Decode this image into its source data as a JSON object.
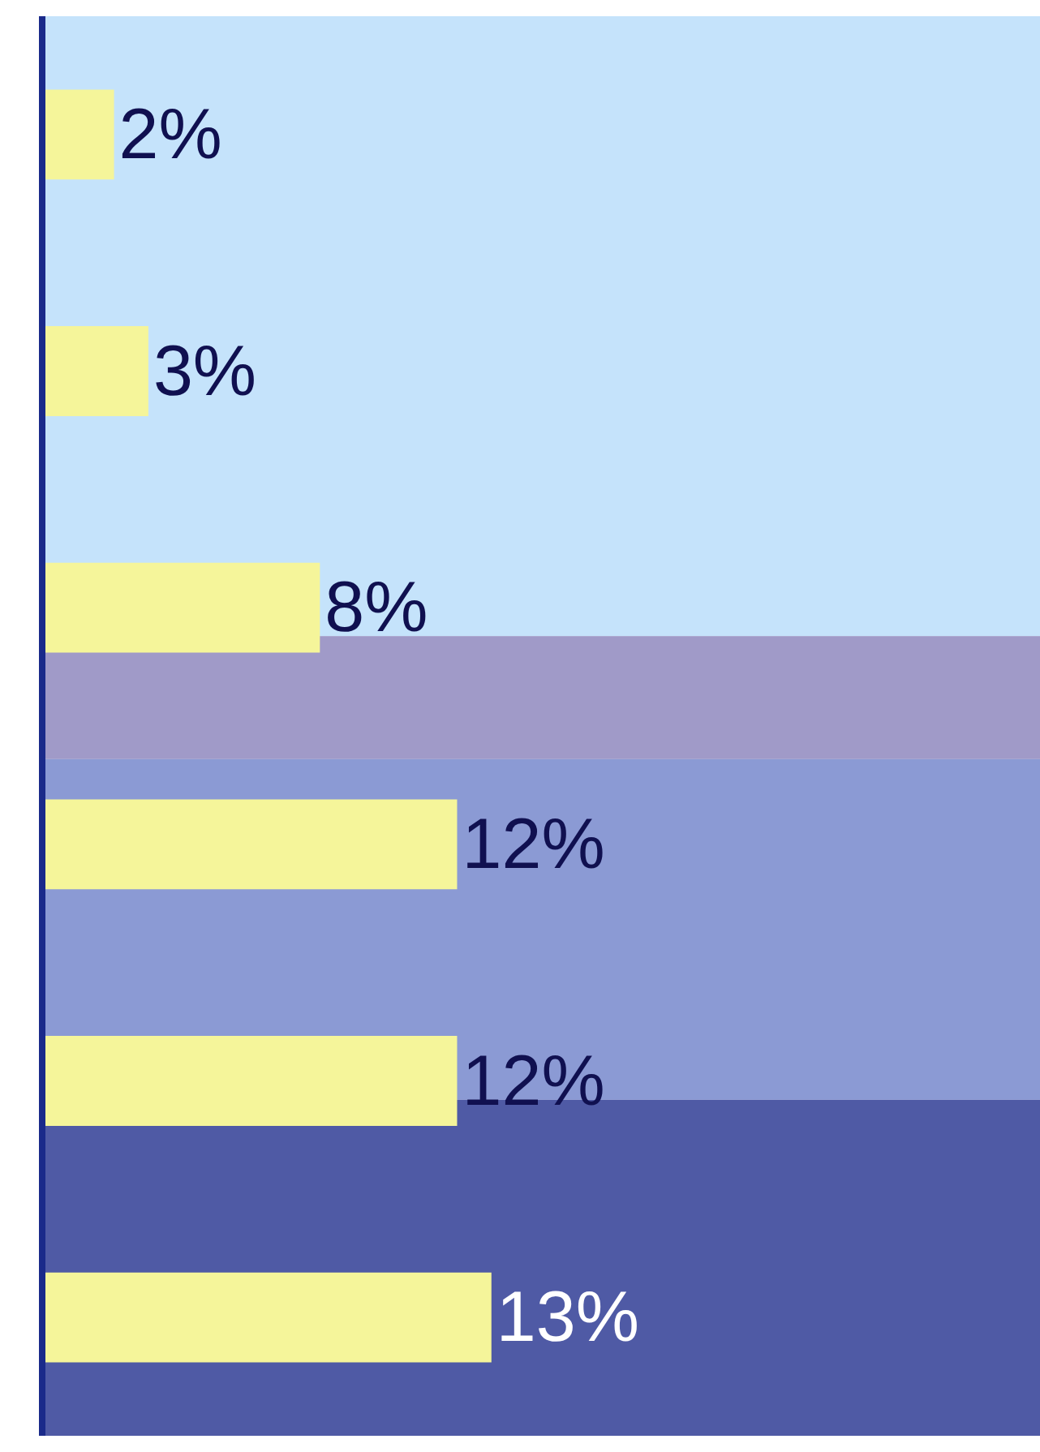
{
  "chart_data": {
    "type": "bar",
    "orientation": "horizontal",
    "categories": [
      null,
      null,
      null,
      null,
      null,
      null
    ],
    "values": [
      2,
      3,
      8,
      12,
      12,
      13
    ],
    "color": "#f5f59a",
    "value_labels": [
      "2%",
      "3%",
      "8%",
      "12%",
      "12%",
      "13%"
    ],
    "grid": false
  }
}
